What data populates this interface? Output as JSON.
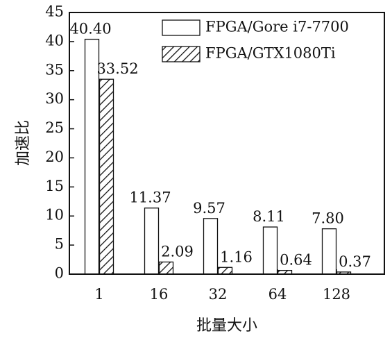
{
  "chart_data": {
    "type": "bar",
    "title": "",
    "xlabel": "批量大小",
    "ylabel": "加速比",
    "categories": [
      "1",
      "16",
      "32",
      "64",
      "128"
    ],
    "series": [
      {
        "name": "FPGA/Gore i7-7700",
        "values": [
          40.4,
          11.37,
          9.57,
          8.11,
          7.8
        ],
        "labels": [
          "40.40",
          "11.37",
          "9.57",
          "8.11",
          "7.80"
        ],
        "pattern": "none"
      },
      {
        "name": "FPGA/GTX1080Ti",
        "values": [
          33.52,
          2.09,
          1.16,
          0.64,
          0.37
        ],
        "labels": [
          "33.52",
          "2.09",
          "1.16",
          "0.64",
          "0.37"
        ],
        "pattern": "hatch"
      }
    ],
    "ylim": [
      0,
      45
    ],
    "yticks": [
      0,
      5,
      10,
      15,
      20,
      25,
      30,
      35,
      40,
      45
    ],
    "grid": false,
    "legend_position": "top-right",
    "colors": {
      "bar_fill": "#ffffff",
      "bar_stroke": "#111111",
      "hatch": "#111111"
    }
  }
}
